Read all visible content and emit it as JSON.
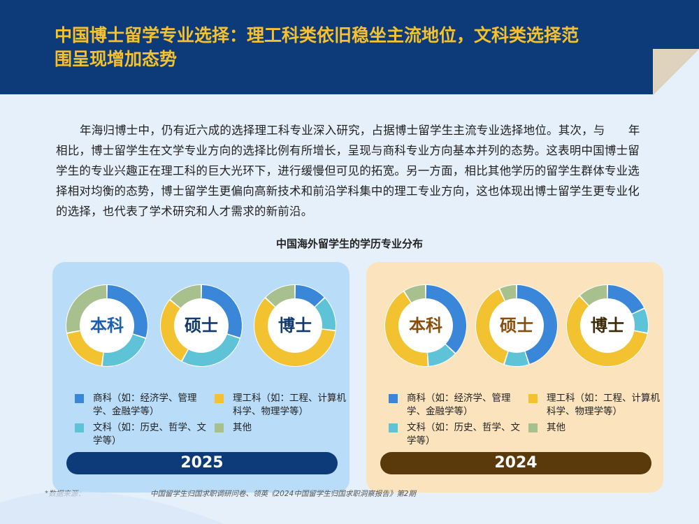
{
  "header": {
    "title": "中国博士留学专业选择：理工科类依旧稳坐主流地位，文科类选择范围呈现增加态势"
  },
  "intro": "年海归博士中，仍有近六成的选择理工科专业深入研究，占据博士留学生主流专业选择地位。其次，与　　年相比，博士留学生在文学专业方向的选择比例有所增长，呈现与商科专业方向基本并列的态势。这表明中国博士留学生的专业兴趣正在理工科的巨大光环下，进行缓慢但可见的拓宽。另一方面，相比其他学历的留学生群体专业选择相对均衡的态势，博士留学生更偏向高新技术和前沿学科集中的理工专业方向，这也体现出博士留学生更专业化的选择，也代表了学术研究和人才需求的新前沿。",
  "chart_title": "中国海外留学生的学历专业分布",
  "colors": {
    "business": "#3a86d8",
    "stem": "#f2c230",
    "liberal_arts": "#5fc3d8",
    "other": "#a8c08e"
  },
  "legend": {
    "business": "商科（如：经济学、管理学、金融学等）",
    "stem": "理工科（如：工程、计算机科学、物理学等）",
    "liberal_arts": "文科（如：历史、哲学、文学等）",
    "other": "其他"
  },
  "chart_data": [
    {
      "type": "pie",
      "year": "2025",
      "categories": [
        "商科",
        "文科",
        "理工科",
        "其他"
      ],
      "series": [
        {
          "name": "本科",
          "values": [
            30,
            22,
            20,
            28
          ]
        },
        {
          "name": "硕士",
          "values": [
            30,
            28,
            28,
            14
          ]
        },
        {
          "name": "博士",
          "values": [
            13,
            14,
            60,
            13
          ]
        }
      ]
    },
    {
      "type": "pie",
      "year": "2024",
      "categories": [
        "商科",
        "文科",
        "理工科",
        "其他"
      ],
      "series": [
        {
          "name": "本科",
          "values": [
            37,
            12,
            42,
            9
          ]
        },
        {
          "name": "硕士",
          "values": [
            45,
            10,
            38,
            7
          ]
        },
        {
          "name": "博士",
          "values": [
            18,
            10,
            60,
            12
          ]
        }
      ]
    }
  ],
  "panels": [
    {
      "year": "2025"
    },
    {
      "year": "2024"
    }
  ],
  "source": {
    "label": "*数据来源：",
    "text": "中国留学生归国求职调研问卷、领英《2024中国留学生归国求职洞察报告》第2期"
  }
}
